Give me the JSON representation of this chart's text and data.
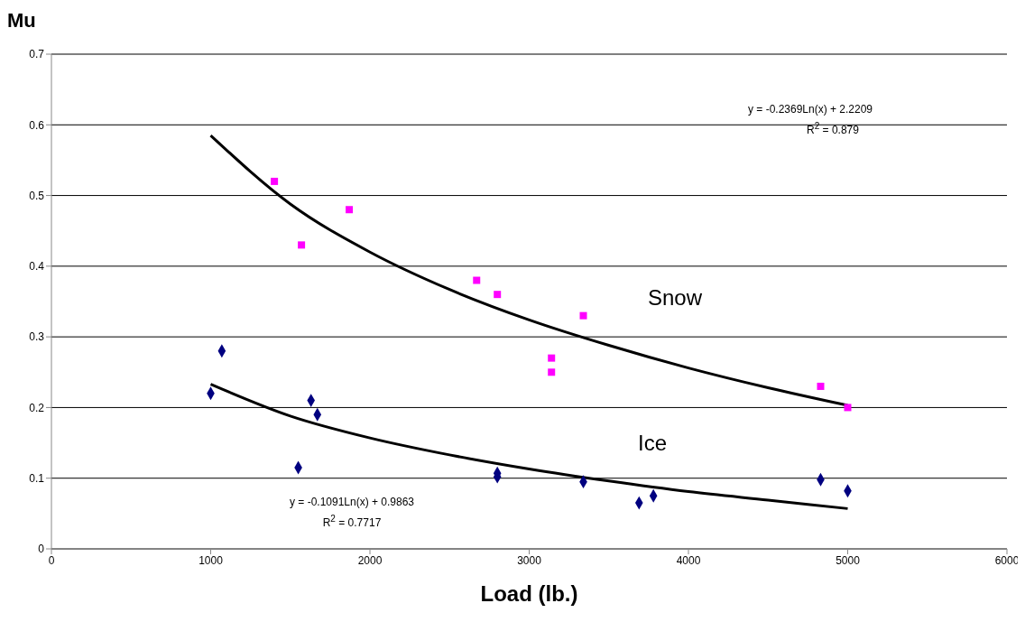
{
  "chart_data": {
    "type": "scatter",
    "xlabel": "Load (lb.)",
    "ylabel": "Mu",
    "xlim": [
      0,
      6000
    ],
    "xticks": [
      0,
      1000,
      2000,
      3000,
      4000,
      5000,
      6000
    ],
    "ylim": [
      0,
      0.7
    ],
    "yticks": [
      0,
      0.1,
      0.2,
      0.3,
      0.4,
      0.5,
      0.6,
      0.7
    ],
    "grid": "y",
    "series": [
      {
        "marker": "square",
        "color": "#ff00ff",
        "x": [
          1400,
          1570,
          1870,
          2670,
          2800,
          3140,
          3140,
          3340,
          4830,
          5000
        ],
        "values": [
          0.52,
          0.43,
          0.48,
          0.38,
          0.36,
          0.27,
          0.25,
          0.33,
          0.23,
          0.2
        ]
      },
      {
        "marker": "diamond",
        "color": "#000080",
        "x": [
          1000,
          1070,
          1630,
          1670,
          1550,
          2800,
          2800,
          3340,
          3690,
          3780,
          4830,
          5000
        ],
        "values": [
          0.22,
          0.28,
          0.21,
          0.19,
          0.115,
          0.107,
          0.102,
          0.095,
          0.065,
          0.075,
          0.098,
          0.082
        ]
      },
      {
        "type": "line",
        "marker": "none",
        "color": "#000000",
        "x": [
          1000,
          1500,
          2000,
          2500,
          3000,
          3500,
          4000,
          4500,
          5000
        ],
        "values": [
          0.585,
          0.488,
          0.42,
          0.367,
          0.324,
          0.288,
          0.256,
          0.228,
          0.203
        ]
      },
      {
        "type": "line",
        "marker": "none",
        "color": "#000000",
        "x": [
          1000,
          1500,
          2000,
          2500,
          3000,
          3500,
          4000,
          4500,
          5000
        ],
        "values": [
          0.233,
          0.188,
          0.157,
          0.133,
          0.113,
          0.096,
          0.081,
          0.069,
          0.057
        ]
      }
    ],
    "annotations": [
      "y = -0.2369Ln(x) + 2.2209",
      "R$^{2}$ = 0.879",
      "y = -0.1091Ln(x) + 0.9863",
      "R$^{2}$ = 0.7717",
      "Snow",
      "Ice"
    ]
  }
}
